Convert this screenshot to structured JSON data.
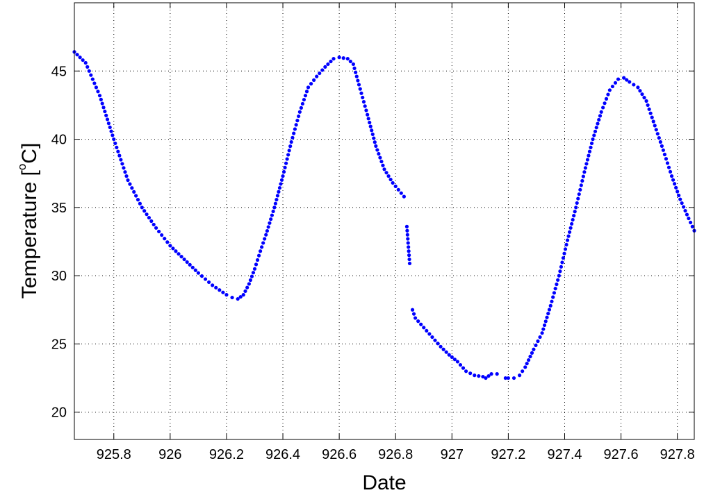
{
  "chart_data": {
    "type": "scatter",
    "title": "",
    "xlabel": "Date",
    "ylabel_main": "Temperature  [",
    "ylabel_degree": "o",
    "ylabel_unit": "C]",
    "xlim": [
      925.66,
      927.86
    ],
    "ylim": [
      18,
      50
    ],
    "xticks": [
      925.8,
      926,
      926.2,
      926.4,
      926.6,
      926.8,
      927,
      927.2,
      927.4,
      927.6,
      927.8
    ],
    "xtick_labels": [
      "925.8",
      "926",
      "926.2",
      "926.4",
      "926.6",
      "926.8",
      "927",
      "927.2",
      "927.4",
      "927.6",
      "927.8"
    ],
    "yticks": [
      20,
      25,
      30,
      35,
      40,
      45
    ],
    "ytick_labels": [
      "20",
      "25",
      "30",
      "35",
      "40",
      "45"
    ],
    "grid": true,
    "marker_color": "#0000ff",
    "segments": [
      {
        "points": [
          [
            925.66,
            46.4
          ],
          [
            925.7,
            45.6
          ],
          [
            925.75,
            43.2
          ],
          [
            925.8,
            40.0
          ],
          [
            925.85,
            37.0
          ],
          [
            925.9,
            35.0
          ],
          [
            925.95,
            33.5
          ],
          [
            926.0,
            32.2
          ],
          [
            926.05,
            31.2
          ],
          [
            926.1,
            30.2
          ],
          [
            926.15,
            29.3
          ],
          [
            926.2,
            28.6
          ],
          [
            926.22,
            28.4
          ],
          [
            926.24,
            28.3
          ],
          [
            926.26,
            28.6
          ],
          [
            926.28,
            29.4
          ],
          [
            926.3,
            30.5
          ],
          [
            926.32,
            31.8
          ],
          [
            926.34,
            33.0
          ],
          [
            926.37,
            35.0
          ],
          [
            926.4,
            37.3
          ],
          [
            926.43,
            39.8
          ],
          [
            926.46,
            42.0
          ],
          [
            926.49,
            43.8
          ],
          [
            926.52,
            44.6
          ],
          [
            926.55,
            45.3
          ],
          [
            926.58,
            45.9
          ],
          [
            926.6,
            46.0
          ],
          [
            926.63,
            45.9
          ],
          [
            926.65,
            45.5
          ],
          [
            926.67,
            44.0
          ],
          [
            926.7,
            41.8
          ],
          [
            926.73,
            39.5
          ],
          [
            926.76,
            37.8
          ],
          [
            926.79,
            36.8
          ],
          [
            926.81,
            36.3
          ],
          [
            926.83,
            35.8
          ]
        ]
      },
      {
        "points": [
          [
            926.84,
            33.6
          ],
          [
            926.85,
            30.9
          ]
        ]
      },
      {
        "points": [
          [
            926.86,
            27.5
          ],
          [
            926.87,
            26.9
          ],
          [
            926.9,
            26.2
          ],
          [
            926.93,
            25.5
          ],
          [
            926.96,
            24.8
          ],
          [
            926.99,
            24.2
          ],
          [
            927.02,
            23.7
          ],
          [
            927.05,
            23.0
          ],
          [
            927.08,
            22.7
          ],
          [
            927.11,
            22.6
          ],
          [
            927.12,
            22.5
          ],
          [
            927.14,
            22.8
          ],
          [
            927.16,
            22.8
          ]
        ]
      },
      {
        "points": [
          [
            927.19,
            22.5
          ],
          [
            927.2,
            22.5
          ],
          [
            927.22,
            22.5
          ],
          [
            927.24,
            22.7
          ],
          [
            927.26,
            23.3
          ],
          [
            927.29,
            24.6
          ],
          [
            927.32,
            25.8
          ],
          [
            927.35,
            27.8
          ],
          [
            927.38,
            30.0
          ],
          [
            927.41,
            32.6
          ],
          [
            927.44,
            35.0
          ],
          [
            927.47,
            37.6
          ],
          [
            927.5,
            40.0
          ],
          [
            927.53,
            42.0
          ],
          [
            927.56,
            43.6
          ],
          [
            927.59,
            44.4
          ],
          [
            927.61,
            44.5
          ],
          [
            927.63,
            44.2
          ],
          [
            927.66,
            43.8
          ],
          [
            927.69,
            42.8
          ],
          [
            927.72,
            41.0
          ],
          [
            927.75,
            39.2
          ],
          [
            927.78,
            37.3
          ],
          [
            927.81,
            35.6
          ],
          [
            927.84,
            34.2
          ],
          [
            927.86,
            33.3
          ]
        ]
      }
    ]
  }
}
